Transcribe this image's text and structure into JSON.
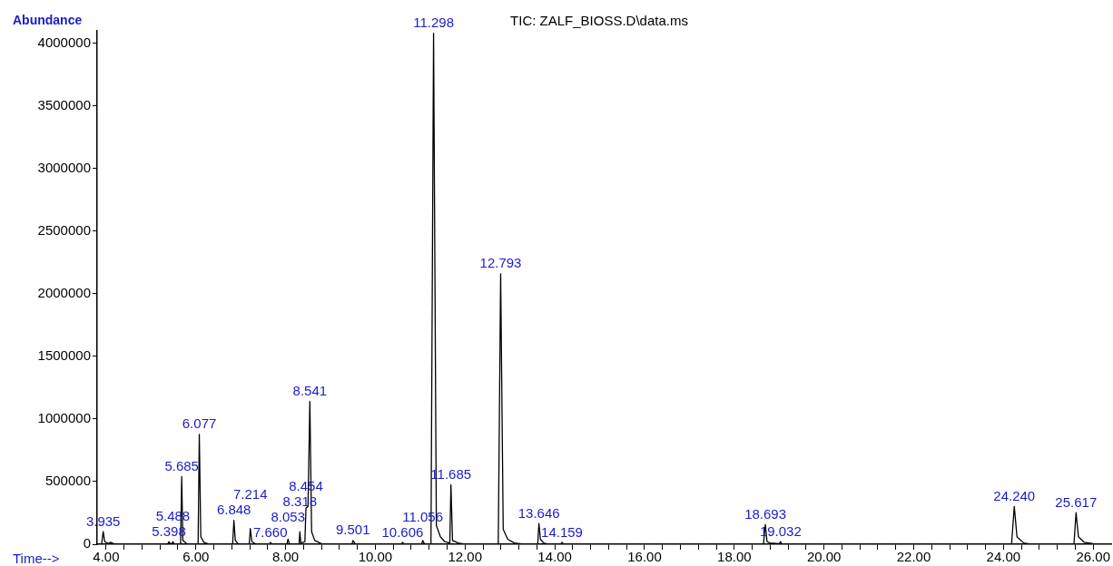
{
  "chart_data": {
    "type": "line",
    "title": "TIC: ZALF_BIOSS.D\\data.ms",
    "xlabel": "Time-->",
    "ylabel": "Abundance",
    "x": [
      3.8,
      3.9,
      3.935,
      3.97,
      4.05,
      4.1,
      4.2,
      5.37,
      5.398,
      5.43,
      5.46,
      5.488,
      5.52,
      5.66,
      5.685,
      5.71,
      5.75,
      5.8,
      6.05,
      6.077,
      6.11,
      6.18,
      6.3,
      6.82,
      6.848,
      6.88,
      6.95,
      7.19,
      7.214,
      7.25,
      7.35,
      7.64,
      7.66,
      7.7,
      8.03,
      8.053,
      8.09,
      8.3,
      8.318,
      8.34,
      8.43,
      8.454,
      8.5,
      8.541,
      8.58,
      8.65,
      8.8,
      8.9,
      9.48,
      9.501,
      9.55,
      9.65,
      10.58,
      10.606,
      10.64,
      11.03,
      11.056,
      11.1,
      11.24,
      11.298,
      11.36,
      11.45,
      11.55,
      11.66,
      11.685,
      11.72,
      11.85,
      12.0,
      12.74,
      12.793,
      12.85,
      12.95,
      13.1,
      13.3,
      13.62,
      13.646,
      13.68,
      13.75,
      13.85,
      14.13,
      14.159,
      14.2,
      14.6,
      18.65,
      18.693,
      18.73,
      18.8,
      19.0,
      19.032,
      19.06,
      24.18,
      24.24,
      24.3,
      24.45,
      24.6,
      25.1,
      25.57,
      25.617,
      25.67,
      25.8,
      26.0,
      26.4
    ],
    "series": [
      {
        "color": "#000000",
        "values": [
          0,
          0,
          100000,
          20000,
          5000,
          15000,
          0,
          0,
          20000,
          5000,
          5000,
          20000,
          3000,
          0,
          540000,
          30000,
          20000,
          0,
          0,
          878000,
          60000,
          15000,
          0,
          0,
          190000,
          30000,
          0,
          0,
          125000,
          20000,
          0,
          0,
          15000,
          0,
          0,
          40000,
          0,
          0,
          100000,
          10000,
          20000,
          290000,
          300000,
          1140000,
          100000,
          30000,
          5000,
          0,
          0,
          30000,
          5000,
          0,
          0,
          15000,
          0,
          0,
          30000,
          0,
          0,
          4080000,
          150000,
          60000,
          20000,
          10000,
          475000,
          30000,
          10000,
          0,
          0,
          2160000,
          120000,
          40000,
          10000,
          0,
          0,
          165000,
          40000,
          10000,
          0,
          0,
          15000,
          0,
          0,
          0,
          158000,
          20000,
          10000,
          5000,
          20000,
          0,
          0,
          302000,
          60000,
          10000,
          0,
          0,
          0,
          252000,
          60000,
          15000,
          5000,
          0
        ]
      }
    ],
    "xlim": [
      3.8,
      26.4
    ],
    "xticks": [
      {
        "value": 4,
        "label": "4.00"
      },
      {
        "value": 4.4,
        "label": null
      },
      {
        "value": 4.8,
        "label": null
      },
      {
        "value": 5.2,
        "label": null
      },
      {
        "value": 5.6,
        "label": null
      },
      {
        "value": 6,
        "label": "6.00"
      },
      {
        "value": 6.4,
        "label": null
      },
      {
        "value": 6.8,
        "label": null
      },
      {
        "value": 7.2,
        "label": null
      },
      {
        "value": 7.6,
        "label": null
      },
      {
        "value": 8,
        "label": "8.00"
      },
      {
        "value": 8.4,
        "label": null
      },
      {
        "value": 8.8,
        "label": null
      },
      {
        "value": 9.2,
        "label": null
      },
      {
        "value": 9.6,
        "label": null
      },
      {
        "value": 10,
        "label": "10.00"
      },
      {
        "value": 10.4,
        "label": null
      },
      {
        "value": 10.8,
        "label": null
      },
      {
        "value": 11.2,
        "label": null
      },
      {
        "value": 11.6,
        "label": null
      },
      {
        "value": 12,
        "label": "12.00"
      },
      {
        "value": 12.4,
        "label": null
      },
      {
        "value": 12.8,
        "label": null
      },
      {
        "value": 13.2,
        "label": null
      },
      {
        "value": 13.6,
        "label": null
      },
      {
        "value": 14,
        "label": "14.00"
      },
      {
        "value": 14.4,
        "label": null
      },
      {
        "value": 14.8,
        "label": null
      },
      {
        "value": 15.2,
        "label": null
      },
      {
        "value": 15.6,
        "label": null
      },
      {
        "value": 16,
        "label": "16.00"
      },
      {
        "value": 16.4,
        "label": null
      },
      {
        "value": 16.8,
        "label": null
      },
      {
        "value": 17.2,
        "label": null
      },
      {
        "value": 17.6,
        "label": null
      },
      {
        "value": 18,
        "label": "18.00"
      },
      {
        "value": 18.4,
        "label": null
      },
      {
        "value": 18.8,
        "label": null
      },
      {
        "value": 19.2,
        "label": null
      },
      {
        "value": 19.6,
        "label": null
      },
      {
        "value": 20,
        "label": "20.00"
      },
      {
        "value": 20.4,
        "label": null
      },
      {
        "value": 20.8,
        "label": null
      },
      {
        "value": 21.2,
        "label": null
      },
      {
        "value": 21.6,
        "label": null
      },
      {
        "value": 22,
        "label": "22.00"
      },
      {
        "value": 22.4,
        "label": null
      },
      {
        "value": 22.8,
        "label": null
      },
      {
        "value": 23.2,
        "label": null
      },
      {
        "value": 23.6,
        "label": null
      },
      {
        "value": 24,
        "label": "24.00"
      },
      {
        "value": 24.4,
        "label": null
      },
      {
        "value": 24.8,
        "label": null
      },
      {
        "value": 25.2,
        "label": null
      },
      {
        "value": 25.6,
        "label": null
      },
      {
        "value": 26,
        "label": "26.00"
      }
    ],
    "ylim": [
      0,
      4100000
    ],
    "yticks": [
      0,
      500000,
      1000000,
      1500000,
      2000000,
      2500000,
      3000000,
      3500000,
      4000000
    ],
    "marker": "none",
    "line_style": "solid",
    "grid": false,
    "legend": false,
    "annotations": [
      {
        "text": "3.935",
        "x": 3.935,
        "y": 100000
      },
      {
        "text": "5.398",
        "x": 5.398,
        "y": 20000
      },
      {
        "text": "5.488",
        "x": 5.488,
        "y": 20000
      },
      {
        "text": "5.685",
        "x": 5.685,
        "y": 540000
      },
      {
        "text": "6.077",
        "x": 6.077,
        "y": 878000
      },
      {
        "text": "6.848",
        "x": 6.848,
        "y": 190000
      },
      {
        "text": "7.214",
        "x": 7.214,
        "y": 125000
      },
      {
        "text": "7.660",
        "x": 7.66,
        "y": 15000
      },
      {
        "text": "8.053",
        "x": 8.053,
        "y": 40000
      },
      {
        "text": "8.318",
        "x": 8.318,
        "y": 100000
      },
      {
        "text": "8.454",
        "x": 8.454,
        "y": 290000
      },
      {
        "text": "8.541",
        "x": 8.541,
        "y": 1140000
      },
      {
        "text": "9.501",
        "x": 9.501,
        "y": 30000
      },
      {
        "text": "10.606",
        "x": 10.606,
        "y": 15000
      },
      {
        "text": "11.056",
        "x": 11.056,
        "y": 30000
      },
      {
        "text": "11.298",
        "x": 11.298,
        "y": 4080000
      },
      {
        "text": "11.685",
        "x": 11.685,
        "y": 475000
      },
      {
        "text": "12.793",
        "x": 12.793,
        "y": 2160000
      },
      {
        "text": "13.646",
        "x": 13.646,
        "y": 165000
      },
      {
        "text": "14.159",
        "x": 14.159,
        "y": 15000
      },
      {
        "text": "18.693",
        "x": 18.693,
        "y": 158000
      },
      {
        "text": "19.032",
        "x": 19.032,
        "y": 20000
      },
      {
        "text": "24.240",
        "x": 24.24,
        "y": 302000
      },
      {
        "text": "25.617",
        "x": 25.617,
        "y": 252000
      }
    ]
  }
}
